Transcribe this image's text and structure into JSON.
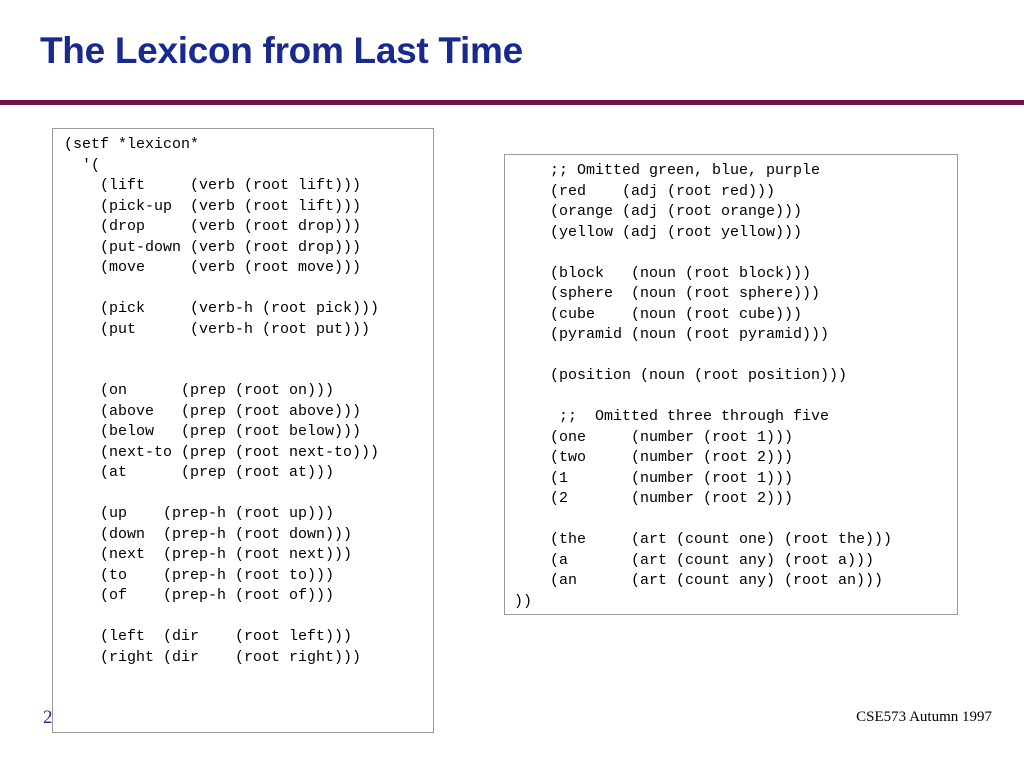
{
  "slide": {
    "title": "The Lexicon from Last Time",
    "page_number": "2",
    "footer": "CSE573 Autumn 1997"
  },
  "left_box": {
    "code": "(setf *lexicon*\n  '(\n    (lift     (verb (root lift)))\n    (pick-up  (verb (root lift)))\n    (drop     (verb (root drop)))\n    (put-down (verb (root drop)))\n    (move     (verb (root move)))\n\n    (pick     (verb-h (root pick)))\n    (put      (verb-h (root put)))\n\n\n    (on      (prep (root on)))\n    (above   (prep (root above)))\n    (below   (prep (root below)))\n    (next-to (prep (root next-to)))\n    (at      (prep (root at)))\n\n    (up    (prep-h (root up)))\n    (down  (prep-h (root down)))\n    (next  (prep-h (root next)))\n    (to    (prep-h (root to)))\n    (of    (prep-h (root of)))\n\n    (left  (dir    (root left)))\n    (right (dir    (root right)))"
  },
  "right_box": {
    "code": "    ;; Omitted green, blue, purple\n    (red    (adj (root red)))\n    (orange (adj (root orange)))\n    (yellow (adj (root yellow)))\n\n    (block   (noun (root block)))\n    (sphere  (noun (root sphere)))\n    (cube    (noun (root cube)))\n    (pyramid (noun (root pyramid)))\n\n    (position (noun (root position)))\n\n     ;;  Omitted three through five\n    (one     (number (root 1)))\n    (two     (number (root 2)))\n    (1       (number (root 1)))\n    (2       (number (root 2)))\n\n    (the     (art (count one) (root the)))\n    (a       (art (count any) (root a)))\n    (an      (art (count any) (root an)))\n))"
  },
  "colors": {
    "title": "#1a2a8c",
    "rule": "#6b1448",
    "box_border": "#9a9a9a"
  }
}
